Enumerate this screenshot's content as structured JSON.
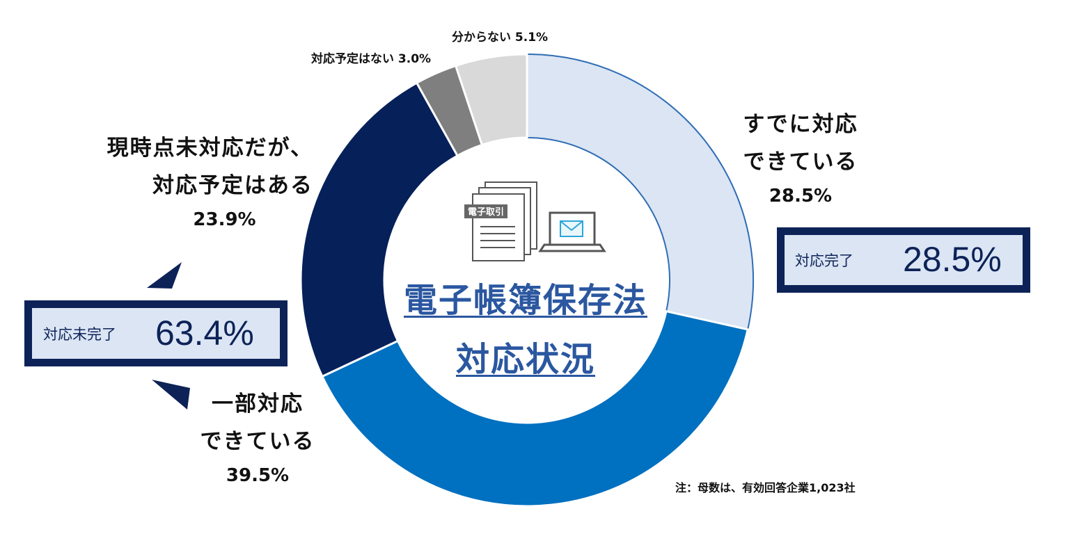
{
  "chart_data": {
    "type": "pie",
    "categories": [
      "すでに対応できている",
      "一部対応できている",
      "現時点未対応だが、対応予定はある",
      "対応予定はない",
      "分からない"
    ],
    "values": [
      28.5,
      39.5,
      23.9,
      3.0,
      5.1
    ],
    "colors": [
      "#dbe5f4",
      "#0070c0",
      "#06205a",
      "#7f7f7f",
      "#d9d9d9"
    ],
    "center_title": [
      "電子帳簿保存法",
      "対応状況"
    ],
    "slice_labels": [
      {
        "lines": [
          "すでに対応",
          "できている"
        ],
        "percent": "28.5%"
      },
      {
        "lines": [
          "一部対応",
          "できている"
        ],
        "percent": "39.5%"
      },
      {
        "lines": [
          "現時点未対応だが、",
          "対応予定はある"
        ],
        "percent": "23.9%"
      },
      {
        "lines": [
          "対応予定はない 3.0%"
        ]
      },
      {
        "lines": [
          "分からない 5.1%"
        ]
      }
    ],
    "summary_boxes": [
      {
        "label": "対応完了",
        "value": "28.5%"
      },
      {
        "label": "対応未完了",
        "value": "63.4%"
      }
    ],
    "note": "注：母数は、有効回答企業1,023社",
    "icon_badge": "電子取引"
  }
}
